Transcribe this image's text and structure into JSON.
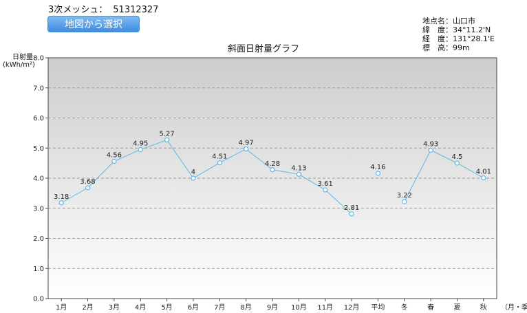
{
  "header": {
    "mesh_label": "3次メッシュ：",
    "mesh_code": "51312327",
    "map_button": "地図から選択"
  },
  "location": {
    "name_label": "地点名：",
    "name": "山口市",
    "lat_label": "緯　度：",
    "lat": "34°11.2'N",
    "lon_label": "経　度：",
    "lon": "131°28.1'E",
    "alt_label": "標　高：",
    "alt": "99m"
  },
  "colors": {
    "line": "#5bb8e6",
    "plot_top": "#cdcdcd",
    "plot_bottom": "#ffffff"
  },
  "chart_data": {
    "type": "line",
    "title": "斜面日射量グラフ",
    "ylabel_line1": "日射量",
    "ylabel_line2": "(kWh/m²)",
    "xlabel_suffix": "（月・季）",
    "ylim": [
      0,
      8
    ],
    "yticks": [
      "0.0",
      "1.0",
      "2.0",
      "3.0",
      "4.0",
      "5.0",
      "6.0",
      "7.0",
      "8.0"
    ],
    "grid": true,
    "categories": [
      "1月",
      "2月",
      "3月",
      "4月",
      "5月",
      "6月",
      "7月",
      "8月",
      "9月",
      "10月",
      "11月",
      "12月",
      "平均",
      "冬",
      "春",
      "夏",
      "秋"
    ],
    "values": [
      3.18,
      3.68,
      4.56,
      4.95,
      5.27,
      4,
      4.51,
      4.97,
      4.28,
      4.13,
      3.61,
      2.81,
      4.16,
      3.22,
      4.93,
      4.5,
      4.01
    ],
    "value_labels": [
      "3.18",
      "3.68",
      "4.56",
      "4.95",
      "5.27",
      "4",
      "4.51",
      "4.97",
      "4.28",
      "4.13",
      "3.61",
      "2.81",
      "4.16",
      "3.22",
      "4.93",
      "4.5",
      "4.01"
    ],
    "line_segments": [
      [
        0,
        11
      ],
      [
        13,
        16
      ]
    ]
  }
}
